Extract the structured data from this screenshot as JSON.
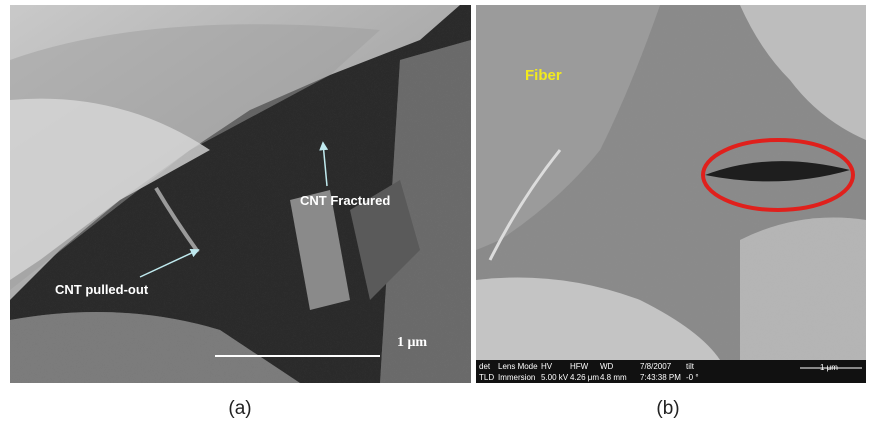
{
  "panels": [
    {
      "caption": "(a)",
      "labels": [
        "CNT Fractured",
        "CNT pulled-out"
      ],
      "scale_bar": "1 μm"
    },
    {
      "caption": "(b)",
      "labels": [
        "Fiber"
      ],
      "info_bar": {
        "headers": [
          "det",
          "Lens Mode",
          "HV",
          "HFW",
          "WD",
          "7/8/2007",
          "tilt"
        ],
        "values": [
          "TLD",
          "Immersion",
          "5.00 kV",
          "4.26 μm",
          "4.8 mm",
          "7:43:38 PM",
          "-0 °"
        ],
        "scale_bar": "1 μm"
      }
    }
  ]
}
